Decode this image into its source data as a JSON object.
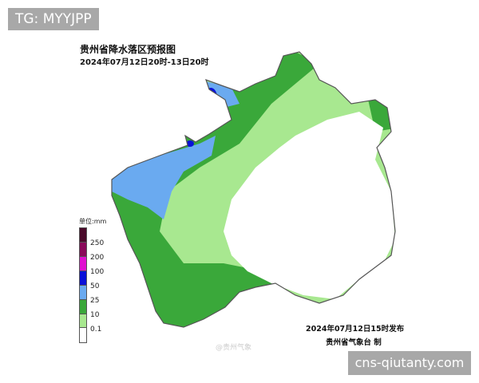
{
  "overlay_tag": "TG: MYYJPP",
  "map": {
    "title": "贵州省降水落区预报图",
    "period": "2024年07月12日20时-13日20时",
    "legend": {
      "unit": "单位:mm",
      "items": [
        {
          "label": "250",
          "color": "#4a0a2a"
        },
        {
          "label": "200",
          "color": "#8a0a5a"
        },
        {
          "label": "100",
          "color": "#e010d0"
        },
        {
          "label": "50",
          "color": "#0a10d8"
        },
        {
          "label": "25",
          "color": "#6aaaf0"
        },
        {
          "label": "10",
          "color": "#3aa83a"
        },
        {
          "label": "0.1",
          "color": "#a8e890"
        },
        {
          "label": "",
          "color": "#ffffff"
        }
      ]
    },
    "issued": "2024年07月12日15时发布",
    "issuer": "贵州省气象台 制",
    "watermark": "@贵州气象"
  },
  "site_label": "cns-qiutanty.com"
}
